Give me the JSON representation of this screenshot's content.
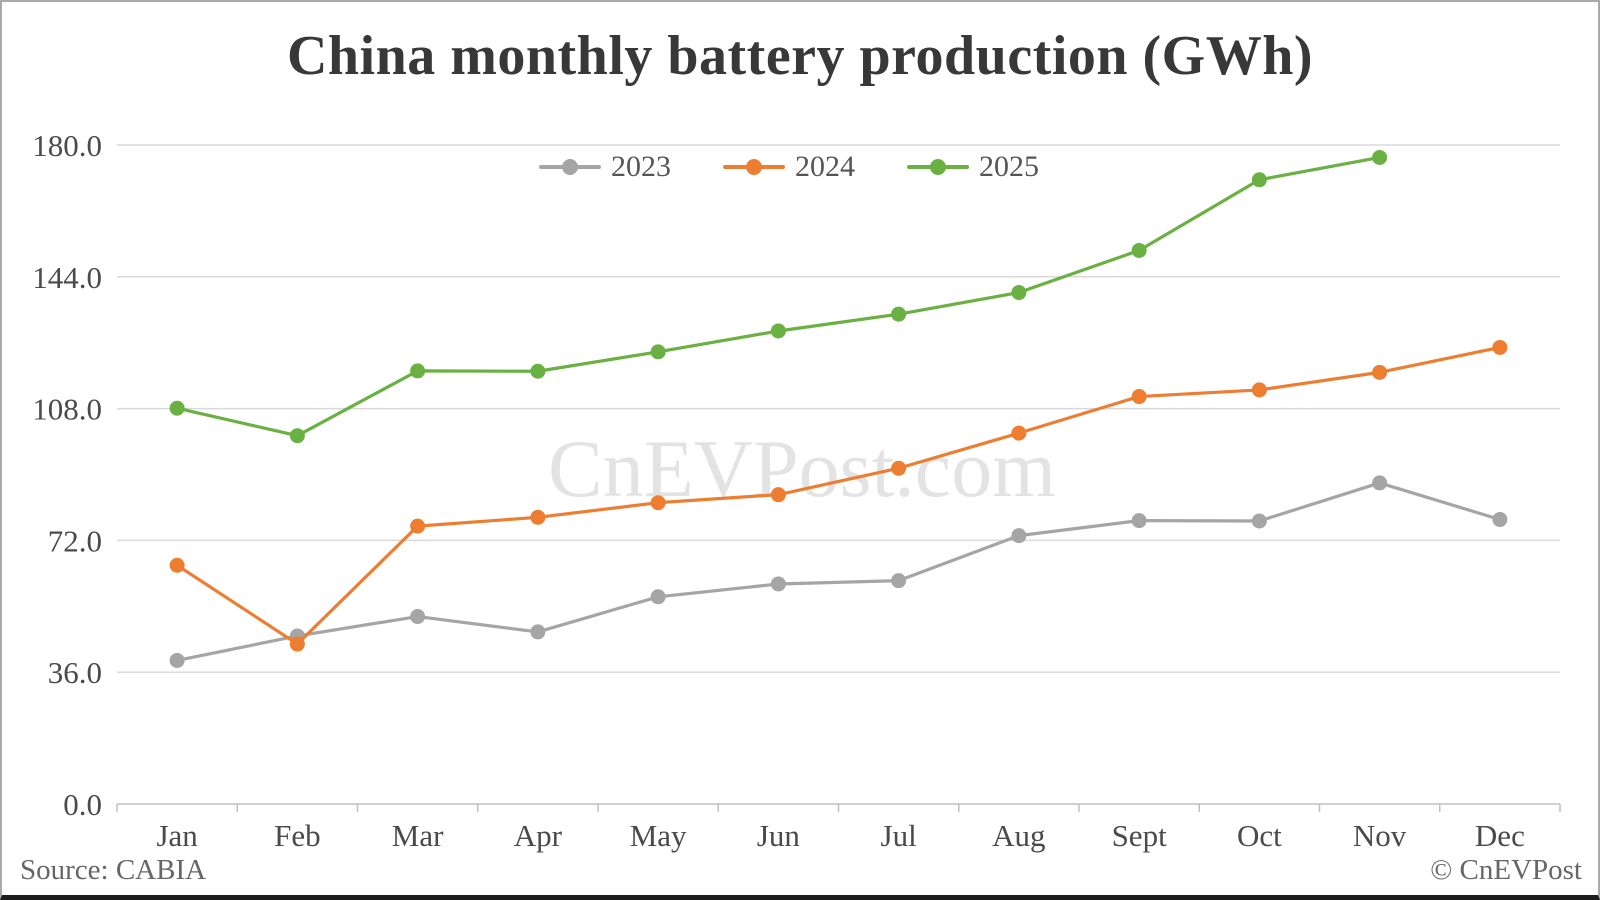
{
  "title": "China monthly battery production (GWh)",
  "watermark": "CnEVPost.com",
  "footer": {
    "source": "Source: CABIA",
    "credit": "© CnEVPost"
  },
  "colors": {
    "series_2023": "#a5a5a5",
    "series_2024": "#ed7d31",
    "series_2025": "#6ab042",
    "gridline": "#d9d9d9",
    "axis_line": "#c0c0c0",
    "tick_label": "#4a4a4a",
    "watermark": "#e3e3e3",
    "title": "#383838"
  },
  "chart_data": {
    "type": "line",
    "title": "China monthly battery production (GWh)",
    "xlabel": "",
    "ylabel": "",
    "ylim": [
      0,
      180
    ],
    "grid": true,
    "legend_position": "top-center",
    "categories": [
      "Jan",
      "Feb",
      "Mar",
      "Apr",
      "May",
      "Jun",
      "Jul",
      "Aug",
      "Sept",
      "Oct",
      "Nov",
      "Dec"
    ],
    "y_ticks": [
      {
        "value": 0,
        "label": "0.0"
      },
      {
        "value": 36,
        "label": "36.0"
      },
      {
        "value": 72,
        "label": "72.0"
      },
      {
        "value": 108,
        "label": "108.0"
      },
      {
        "value": 144,
        "label": "144.0"
      },
      {
        "value": 180,
        "label": "180.0"
      }
    ],
    "series": [
      {
        "name": "2023",
        "color": "#a5a5a5",
        "values": [
          39.2,
          45.9,
          51.2,
          47.0,
          56.6,
          60.1,
          61.0,
          73.3,
          77.4,
          77.3,
          87.7,
          77.7
        ]
      },
      {
        "name": "2024",
        "color": "#ed7d31",
        "values": [
          65.2,
          43.7,
          75.9,
          78.3,
          82.3,
          84.5,
          91.7,
          101.3,
          111.3,
          113.1,
          117.9,
          124.7
        ]
      },
      {
        "name": "2025",
        "color": "#6ab042",
        "values": [
          108.1,
          100.6,
          118.3,
          118.2,
          123.5,
          129.2,
          133.8,
          139.7,
          151.2,
          170.5,
          176.6,
          null
        ]
      }
    ]
  }
}
